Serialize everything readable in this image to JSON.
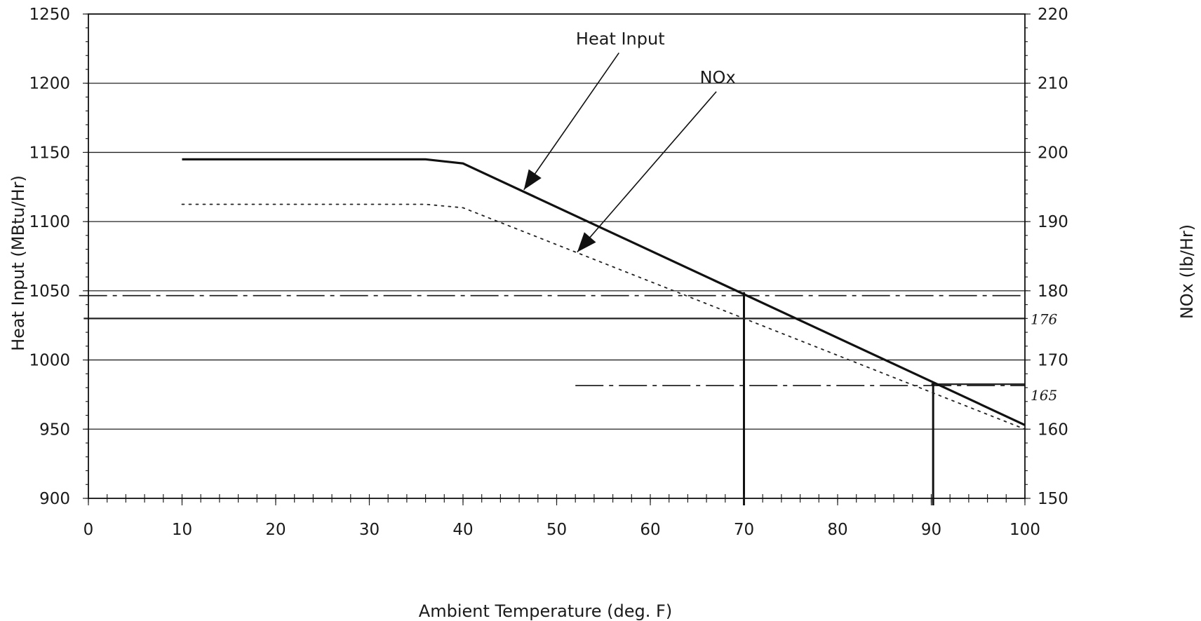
{
  "chart_data": {
    "type": "line",
    "title": "",
    "xlabel": "Ambient Temperature (deg. F)",
    "ylabel": "Heat Input (MBtu/Hr)",
    "y2label": "NOx (lb/Hr)",
    "xlim": [
      0,
      100
    ],
    "ylim": [
      900,
      1250
    ],
    "y2lim": [
      150,
      220
    ],
    "x_ticks": [
      0,
      10,
      20,
      30,
      40,
      50,
      60,
      70,
      80,
      90,
      100
    ],
    "y_ticks": [
      900,
      950,
      1000,
      1050,
      1100,
      1150,
      1200,
      1250
    ],
    "y2_ticks": [
      150,
      160,
      170,
      180,
      190,
      200,
      210,
      220
    ],
    "x_tick_labels": [
      "0",
      "10",
      "20",
      "30",
      "40",
      "50",
      "60",
      "70",
      "80",
      "90",
      "100"
    ],
    "y_tick_labels": [
      "900",
      "950",
      "1000",
      "1050",
      "1100",
      "1150",
      "1200",
      "1250"
    ],
    "y2_tick_labels": [
      "150",
      "160",
      "170",
      "180",
      "190",
      "200",
      "210",
      "220"
    ],
    "grid": true,
    "series": [
      {
        "name": "Heat Input",
        "axis": "left",
        "style": "solid",
        "color": "#111111",
        "x": [
          10,
          36,
          40,
          100
        ],
        "y": [
          1145,
          1145,
          1142,
          953
        ]
      },
      {
        "name": "NOx",
        "axis": "right",
        "style": "dotted",
        "color": "#222222",
        "x": [
          10,
          36,
          40,
          100
        ],
        "y": [
          192.5,
          192.5,
          192,
          160
        ]
      }
    ],
    "annotations": [
      {
        "id": "heat-input-label",
        "text": "Heat Input",
        "label_x": 56.8,
        "label_y": 1228,
        "arrow_to_x": 46.5,
        "arrow_to_y": 1123
      },
      {
        "id": "nox-label",
        "text": "NOx",
        "label_x": 67.2,
        "label_y": 1200,
        "arrow_to_x": 52.2,
        "arrow_to_y": 1078
      }
    ],
    "handwritten": [
      {
        "id": "hand-176",
        "text": "176",
        "axis": "right",
        "value": 176
      },
      {
        "id": "hand-165",
        "text": "165",
        "axis": "right",
        "value": 165
      }
    ],
    "reference_lines": {
      "horizontal": [
        {
          "y": 1046.5,
          "x_from": -1,
          "x_to": 100,
          "style": "dashdot"
        },
        {
          "y": 1030,
          "x_from": -0.5,
          "x_to": 100,
          "style": "solid"
        },
        {
          "y": 981.5,
          "x_from": 52,
          "x_to": 100,
          "style": "dashdot"
        },
        {
          "y": 982.5,
          "x_from": 90,
          "x_to": 100,
          "style": "solid"
        }
      ],
      "vertical": [
        {
          "x": 70,
          "y_from": 1049,
          "y_to": 900
        },
        {
          "x": 90.2,
          "y_from": 984,
          "y_to": 900
        }
      ]
    }
  }
}
